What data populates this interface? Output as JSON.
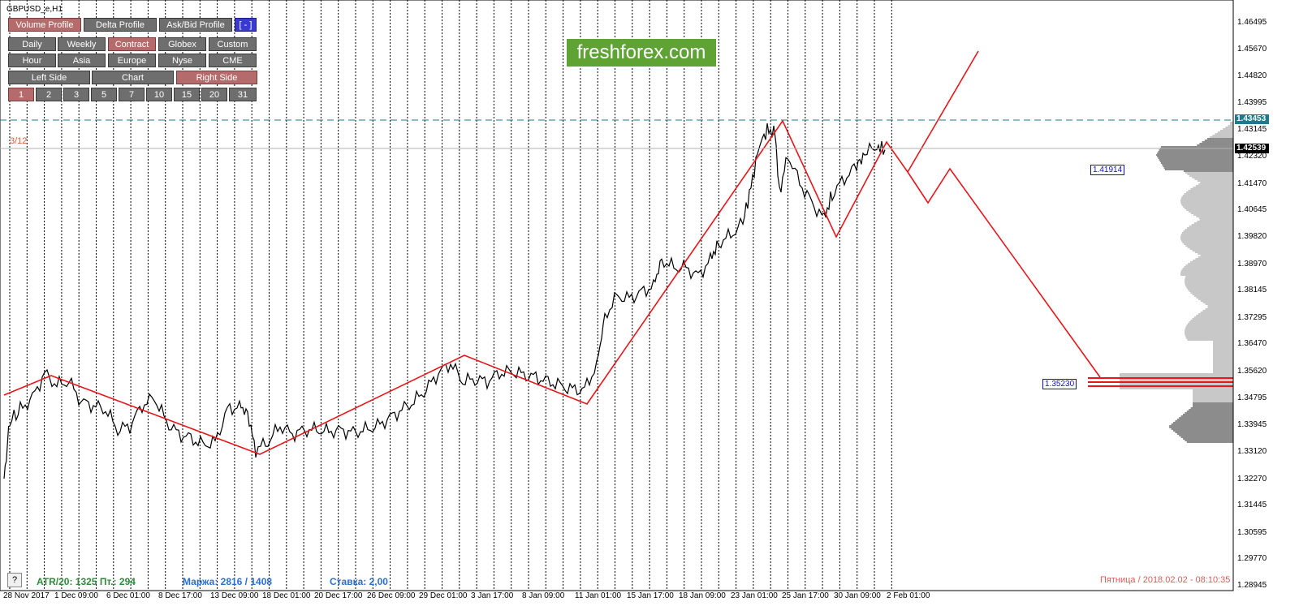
{
  "symbol": "GBPUSD_e,H1",
  "toolbar": {
    "row1": [
      {
        "label": "Volume Profile",
        "active": true
      },
      {
        "label": "Delta Profile",
        "active": false
      },
      {
        "label": "Ask/Bid Profile",
        "active": false
      },
      {
        "label": "[ - ]",
        "active": false,
        "blue": true
      }
    ],
    "row2": [
      {
        "label": "Daily",
        "active": false
      },
      {
        "label": "Weekly",
        "active": false
      },
      {
        "label": "Contract",
        "active": true
      },
      {
        "label": "Globex",
        "active": false
      },
      {
        "label": "Custom",
        "active": false
      }
    ],
    "row3": [
      {
        "label": "Hour",
        "active": false
      },
      {
        "label": "Asia",
        "active": false
      },
      {
        "label": "Europe",
        "active": false
      },
      {
        "label": "Nyse",
        "active": false
      },
      {
        "label": "CME",
        "active": false
      }
    ],
    "row4": [
      {
        "label": "Left Side",
        "active": false
      },
      {
        "label": "Chart",
        "active": false
      },
      {
        "label": "Right Side",
        "active": true
      }
    ],
    "row5": [
      {
        "label": "1",
        "active": true
      },
      {
        "label": "2",
        "active": false
      },
      {
        "label": "3",
        "active": false
      },
      {
        "label": "5",
        "active": false
      },
      {
        "label": "7",
        "active": false
      },
      {
        "label": "10",
        "active": false
      },
      {
        "label": "15",
        "active": false
      },
      {
        "label": "20",
        "active": false
      },
      {
        "label": "31",
        "active": false
      }
    ]
  },
  "watermark": "freshforex.com",
  "profile_tag": "3/12",
  "help_button": "?",
  "status": {
    "atr": "ATR/20: 1325  Пт.: 294",
    "margin": "Маржа: 2816 / 1408",
    "rate": "Ставка: 2,00",
    "datetime": "Пятница  /  2018.02.02  -  08:10:35"
  },
  "price_axis": [
    "1.46495",
    "1.45670",
    "1.44820",
    "1.43995",
    "1.43145",
    "1.42320",
    "1.41470",
    "1.40645",
    "1.39820",
    "1.38970",
    "1.38145",
    "1.37295",
    "1.36470",
    "1.35620",
    "1.34795",
    "1.33945",
    "1.33120",
    "1.32270",
    "1.31445",
    "1.30595",
    "1.29770",
    "1.28945"
  ],
  "current_price": "1.42539",
  "dashed_level": "1.43453",
  "level_boxes": [
    {
      "label": "1.41914",
      "price": 1.41914
    },
    {
      "label": "1.35230",
      "price": 1.3523
    }
  ],
  "time_axis": [
    "28 Nov 2017",
    "1 Dec 09:00",
    "6 Dec 01:00",
    "8 Dec 17:00",
    "13 Dec 09:00",
    "18 Dec 01:00",
    "20 Dec 17:00",
    "26 Dec 09:00",
    "29 Dec 01:00",
    "3 Jan 17:00",
    "8 Jan 09:00",
    "11 Jan 01:00",
    "15 Jan 17:00",
    "18 Jan 09:00",
    "23 Jan 01:00",
    "25 Jan 17:00",
    "30 Jan 09:00",
    "2 Feb 01:00"
  ],
  "colors": {
    "zigzag": "#e8161b",
    "profile": "#8c8c8c",
    "profile_light": "#c8c8c8",
    "poc": "#e8161b",
    "dashed": "#1f7a8c",
    "current_box": "#000000",
    "dashed_box": "#1f7a8c"
  }
}
